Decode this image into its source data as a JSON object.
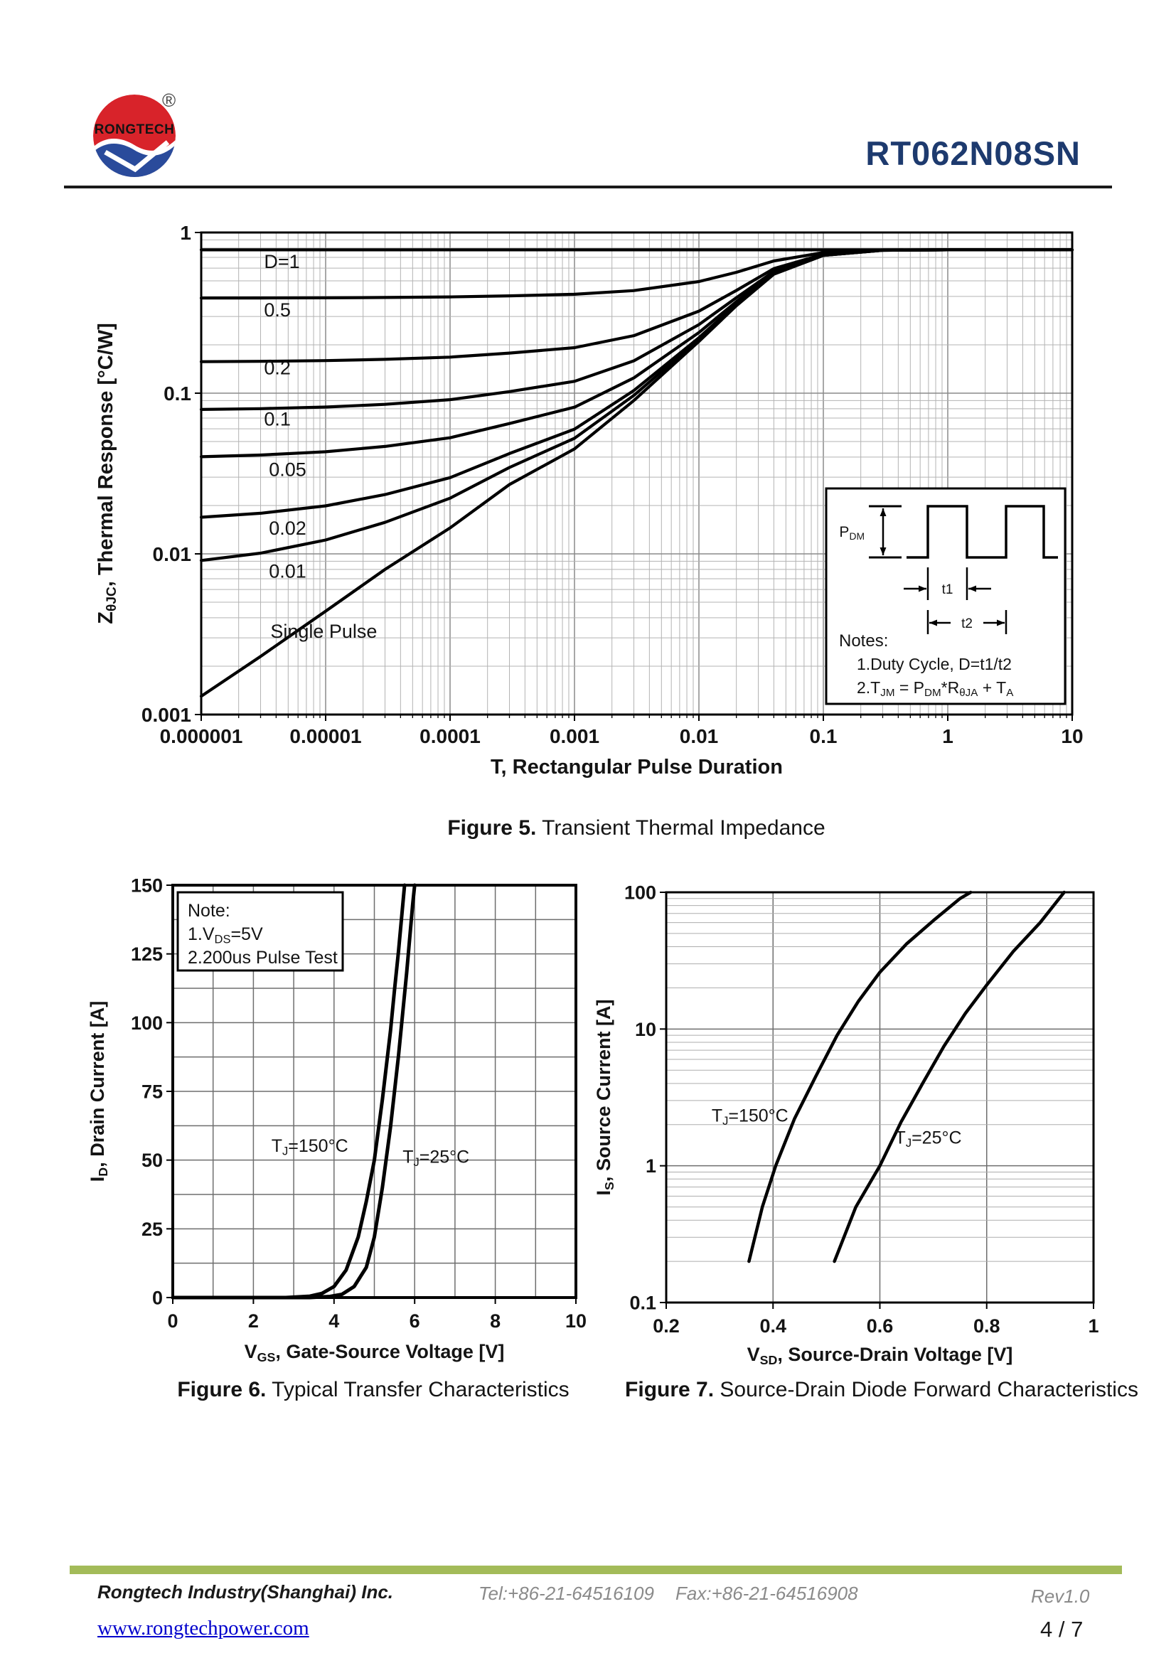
{
  "header": {
    "logo": {
      "brand": "RONGTECH",
      "registered": "®"
    },
    "part_number": "RT062N08SN"
  },
  "figures": {
    "fig5": {
      "caption_label": "Figure 5.",
      "caption_text": " Transient Thermal Impedance"
    },
    "fig6": {
      "caption_label": "Figure 6.",
      "caption_text": " Typical Transfer Characteristics"
    },
    "fig7": {
      "caption_label": "Figure 7.",
      "caption_text": " Source-Drain Diode Forward Characteristics"
    }
  },
  "footer": {
    "company": "Rongtech Industry(Shanghai) Inc.",
    "tel": "Tel:+86-21-64516109",
    "fax": "Fax:+86-21-64516908",
    "rev": "Rev1.0",
    "website": "www.rongtechpower.com",
    "page": "4 / 7",
    "bar_color": "#a3bb59"
  },
  "chart_data": [
    {
      "id": "fig5",
      "type": "line",
      "title": "Transient Thermal Impedance",
      "xscale": "log",
      "yscale": "log",
      "xlim": [
        1e-06,
        10
      ],
      "ylim": [
        0.001,
        1
      ],
      "xlabel": "T, Rectangular Pulse Duration",
      "ylabel": "Z_{θJC}, Thermal Response [°C/W]",
      "grid": {
        "x_minor": true,
        "y_minor": true
      },
      "xticks": [
        {
          "v": 1e-06,
          "t": "0.000001"
        },
        {
          "v": 1e-05,
          "t": "0.00001"
        },
        {
          "v": 0.0001,
          "t": "0.0001"
        },
        {
          "v": 0.001,
          "t": "0.001"
        },
        {
          "v": 0.01,
          "t": "0.01"
        },
        {
          "v": 0.1,
          "t": "0.1"
        },
        {
          "v": 1,
          "t": "1"
        },
        {
          "v": 10,
          "t": "10"
        }
      ],
      "yticks": [
        {
          "v": 1,
          "t": "1"
        },
        {
          "v": 0.1,
          "t": "0.1"
        },
        {
          "v": 0.01,
          "t": "0.01"
        },
        {
          "v": 0.001,
          "t": "0.001"
        }
      ],
      "series": [
        {
          "name": "D=1",
          "label": "D=1",
          "label_pos": [
            3.2e-06,
            0.6
          ],
          "points": [
            [
              1e-06,
              0.78
            ],
            [
              10,
              0.78
            ]
          ]
        },
        {
          "name": "D=0.5",
          "label": "0.5",
          "label_pos": [
            3.2e-06,
            0.3
          ],
          "points": [
            [
              1e-06,
              0.3907
            ],
            [
              3e-06,
              0.3912
            ],
            [
              1e-05,
              0.3922
            ],
            [
              3e-05,
              0.394
            ],
            [
              0.0001,
              0.3973
            ],
            [
              0.0003,
              0.4035
            ],
            [
              0.001,
              0.4125
            ],
            [
              0.003,
              0.435
            ],
            [
              0.01,
              0.495
            ],
            [
              0.02,
              0.565
            ],
            [
              0.04,
              0.665
            ],
            [
              0.1,
              0.75
            ],
            [
              0.3,
              0.7788
            ],
            [
              1,
              0.78
            ],
            [
              10,
              0.78
            ]
          ]
        },
        {
          "name": "D=0.2",
          "label": "0.2",
          "label_pos": [
            3.2e-06,
            0.131
          ],
          "points": [
            [
              1e-06,
              0.157
            ],
            [
              3e-06,
              0.1578
            ],
            [
              1e-05,
              0.1595
            ],
            [
              3e-05,
              0.1624
            ],
            [
              0.0001,
              0.1676
            ],
            [
              0.0003,
              0.1776
            ],
            [
              0.001,
              0.192
            ],
            [
              0.003,
              0.228
            ],
            [
              0.01,
              0.324
            ],
            [
              0.02,
              0.436
            ],
            [
              0.04,
              0.596
            ],
            [
              0.1,
              0.732
            ],
            [
              0.3,
              0.778
            ],
            [
              1,
              0.78
            ],
            [
              10,
              0.78
            ]
          ]
        },
        {
          "name": "D=0.1",
          "label": "0.1",
          "label_pos": [
            3.2e-06,
            0.063
          ],
          "points": [
            [
              1e-06,
              0.0792
            ],
            [
              3e-06,
              0.0801
            ],
            [
              1e-05,
              0.082
            ],
            [
              3e-05,
              0.0852
            ],
            [
              0.0001,
              0.0911
            ],
            [
              0.0003,
              0.1023
            ],
            [
              0.001,
              0.1185
            ],
            [
              0.003,
              0.159
            ],
            [
              0.01,
              0.267
            ],
            [
              0.02,
              0.393
            ],
            [
              0.04,
              0.573
            ],
            [
              0.1,
              0.726
            ],
            [
              0.3,
              0.7775
            ],
            [
              1,
              0.78
            ],
            [
              10,
              0.78
            ]
          ]
        },
        {
          "name": "D=0.05",
          "label": "0.05",
          "label_pos": [
            3.5e-06,
            0.0305
          ],
          "points": [
            [
              1e-06,
              0.0402
            ],
            [
              3e-06,
              0.0412
            ],
            [
              1e-05,
              0.0432
            ],
            [
              3e-05,
              0.0466
            ],
            [
              0.0001,
              0.0528
            ],
            [
              0.0003,
              0.0647
            ],
            [
              0.001,
              0.0818
            ],
            [
              0.003,
              0.1245
            ],
            [
              0.01,
              0.2385
            ],
            [
              0.02,
              0.3715
            ],
            [
              0.04,
              0.5615
            ],
            [
              0.1,
              0.723
            ],
            [
              0.3,
              0.7761
            ],
            [
              1,
              0.78
            ],
            [
              10,
              0.78
            ]
          ]
        },
        {
          "name": "D=0.02",
          "label": "0.02",
          "label_pos": [
            3.5e-06,
            0.0132
          ],
          "points": [
            [
              1e-06,
              0.0169
            ],
            [
              3e-06,
              0.0179
            ],
            [
              1e-05,
              0.0199
            ],
            [
              3e-05,
              0.0234
            ],
            [
              0.0001,
              0.0298
            ],
            [
              0.0003,
              0.0421
            ],
            [
              0.001,
              0.0597
            ],
            [
              0.003,
              0.1038
            ],
            [
              0.01,
              0.2214
            ],
            [
              0.02,
              0.3586
            ],
            [
              0.04,
              0.5546
            ],
            [
              0.1,
              0.7212
            ],
            [
              0.3,
              0.7755
            ],
            [
              1,
              0.78
            ],
            [
              10,
              0.78
            ]
          ]
        },
        {
          "name": "D=0.01",
          "label": "0.01",
          "label_pos": [
            3.5e-06,
            0.0071
          ],
          "points": [
            [
              1e-06,
              0.0091
            ],
            [
              3e-06,
              0.0101
            ],
            [
              1e-05,
              0.0122
            ],
            [
              3e-05,
              0.0157
            ],
            [
              0.0001,
              0.0222
            ],
            [
              0.0003,
              0.0345
            ],
            [
              0.001,
              0.0524
            ],
            [
              0.003,
              0.0969
            ],
            [
              0.01,
              0.2157
            ],
            [
              0.02,
              0.3543
            ],
            [
              0.04,
              0.5523
            ],
            [
              0.1,
              0.7206
            ],
            [
              0.3,
              0.775
            ],
            [
              1,
              0.78
            ],
            [
              10,
              0.78
            ]
          ]
        },
        {
          "name": "Single Pulse",
          "label": "Single Pulse",
          "label_pos": [
            3.6e-06,
            0.003
          ],
          "points": [
            [
              1e-06,
              0.0013
            ],
            [
              3e-06,
              0.0023
            ],
            [
              1e-05,
              0.0044
            ],
            [
              3e-05,
              0.008
            ],
            [
              0.0001,
              0.0145
            ],
            [
              0.0003,
              0.027
            ],
            [
              0.001,
              0.045
            ],
            [
              0.003,
              0.09
            ],
            [
              0.01,
              0.21
            ],
            [
              0.02,
              0.35
            ],
            [
              0.04,
              0.55
            ],
            [
              0.1,
              0.72
            ],
            [
              0.3,
              0.775
            ],
            [
              1,
              0.78
            ],
            [
              10,
              0.78
            ]
          ]
        }
      ],
      "inset": {
        "pdm": "P_{DM}",
        "t1": "t1",
        "t2": "t2",
        "notes": [
          "Notes:",
          "1.Duty  Cycle, D=t1/t2",
          "2.T_{JM} = P_{DM}*R_{θJA} + T_{A}"
        ]
      }
    },
    {
      "id": "fig6",
      "type": "line",
      "title": "Typical Transfer Characteristics",
      "xscale": "linear",
      "yscale": "linear",
      "xlim": [
        0,
        10
      ],
      "ylim": [
        0,
        150
      ],
      "xgrid_step": 1,
      "ygrid_step": 12.5,
      "xlabel": "V_{GS}, Gate-Source Voltage [V]",
      "ylabel": "I_{D}, Drain Current [A]",
      "xticks": [
        {
          "v": 0,
          "t": "0"
        },
        {
          "v": 2,
          "t": "2"
        },
        {
          "v": 4,
          "t": "4"
        },
        {
          "v": 6,
          "t": "6"
        },
        {
          "v": 8,
          "t": "8"
        },
        {
          "v": 10,
          "t": "10"
        }
      ],
      "yticks": [
        {
          "v": 0,
          "t": "0"
        },
        {
          "v": 25,
          "t": "25"
        },
        {
          "v": 50,
          "t": "50"
        },
        {
          "v": 75,
          "t": "75"
        },
        {
          "v": 100,
          "t": "100"
        },
        {
          "v": 125,
          "t": "125"
        },
        {
          "v": 150,
          "t": "150"
        }
      ],
      "note_box": {
        "lines": [
          "Note:",
          "1.V_{DS}=5V",
          "2.200us Pulse Test"
        ]
      },
      "series": [
        {
          "name": "TJ=150C",
          "label": "T_{J}=150°C",
          "label_pos": [
            4.35,
            53
          ],
          "label_anchor": "end",
          "points": [
            [
              0,
              0
            ],
            [
              2.8,
              0
            ],
            [
              3.4,
              0.5
            ],
            [
              3.7,
              1.5
            ],
            [
              4.0,
              4
            ],
            [
              4.3,
              10
            ],
            [
              4.6,
              22
            ],
            [
              4.8,
              35
            ],
            [
              5.0,
              50
            ],
            [
              5.2,
              72
            ],
            [
              5.4,
              97
            ],
            [
              5.5,
              112
            ],
            [
              5.6,
              126
            ],
            [
              5.75,
              150
            ]
          ]
        },
        {
          "name": "TJ=25C",
          "label": "T_{J}=25°C",
          "label_pos": [
            5.7,
            49
          ],
          "label_anchor": "start",
          "points": [
            [
              0,
              0
            ],
            [
              3.4,
              0
            ],
            [
              3.9,
              0.4
            ],
            [
              4.2,
              1.2
            ],
            [
              4.5,
              4
            ],
            [
              4.8,
              11
            ],
            [
              5.0,
              22
            ],
            [
              5.2,
              40
            ],
            [
              5.4,
              62
            ],
            [
              5.6,
              88
            ],
            [
              5.8,
              118
            ],
            [
              5.95,
              143
            ],
            [
              6.0,
              150
            ]
          ]
        }
      ]
    },
    {
      "id": "fig7",
      "type": "line",
      "title": "Source-Drain Diode Forward Characteristics",
      "xscale": "linear",
      "yscale": "log",
      "xlim": [
        0.2,
        1
      ],
      "ylim": [
        0.1,
        100
      ],
      "xgrid_step": 0.2,
      "grid": {
        "y_minor": true
      },
      "xlabel": "V_{SD}, Source-Drain Voltage [V]",
      "ylabel": "I_{S}, Source Current [A]",
      "xticks": [
        {
          "v": 0.2,
          "t": "0.2"
        },
        {
          "v": 0.4,
          "t": "0.4"
        },
        {
          "v": 0.6,
          "t": "0.6"
        },
        {
          "v": 0.8,
          "t": "0.8"
        },
        {
          "v": 1,
          "t": "1"
        }
      ],
      "yticks": [
        {
          "v": 100,
          "t": "100"
        },
        {
          "v": 10,
          "t": "10"
        },
        {
          "v": 1,
          "t": "1"
        },
        {
          "v": 0.1,
          "t": "0.1"
        }
      ],
      "series": [
        {
          "name": "TJ=150C",
          "label": "T_{J}=150°C",
          "label_pos": [
            0.285,
            2.1
          ],
          "label_anchor": "start",
          "points": [
            [
              0.355,
              0.2
            ],
            [
              0.38,
              0.5
            ],
            [
              0.405,
              1
            ],
            [
              0.44,
              2.2
            ],
            [
              0.48,
              4.5
            ],
            [
              0.52,
              9
            ],
            [
              0.56,
              16
            ],
            [
              0.6,
              26
            ],
            [
              0.65,
              42
            ],
            [
              0.7,
              62
            ],
            [
              0.75,
              90
            ],
            [
              0.77,
              100
            ]
          ]
        },
        {
          "name": "TJ=25C",
          "label": "T_{J}=25°C",
          "label_pos": [
            0.628,
            1.45
          ],
          "label_anchor": "start",
          "points": [
            [
              0.515,
              0.2
            ],
            [
              0.555,
              0.5
            ],
            [
              0.6,
              1
            ],
            [
              0.64,
              2.1
            ],
            [
              0.68,
              4
            ],
            [
              0.72,
              7.5
            ],
            [
              0.76,
              13
            ],
            [
              0.8,
              21
            ],
            [
              0.85,
              37
            ],
            [
              0.9,
              60
            ],
            [
              0.945,
              100
            ]
          ]
        }
      ]
    }
  ]
}
